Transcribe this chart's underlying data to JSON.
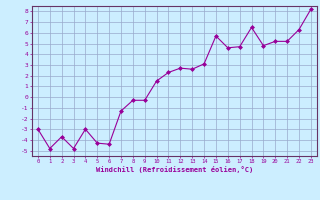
{
  "x": [
    0,
    1,
    2,
    3,
    4,
    5,
    6,
    7,
    8,
    9,
    10,
    11,
    12,
    13,
    14,
    15,
    16,
    17,
    18,
    19,
    20,
    21,
    22,
    23
  ],
  "y": [
    -3,
    -4.8,
    -3.7,
    -4.8,
    -3,
    -4.3,
    -4.4,
    -1.3,
    -0.3,
    -0.3,
    1.5,
    2.3,
    2.7,
    2.6,
    3.1,
    5.7,
    4.6,
    4.7,
    6.5,
    4.8,
    5.2,
    5.2,
    6.3,
    8.2
  ],
  "line_color": "#990099",
  "marker_color": "#990099",
  "bg_color": "#cceeff",
  "grid_color": "#99aacc",
  "xlabel": "Windchill (Refroidissement éolien,°C)",
  "xlabel_color": "#990099",
  "tick_color": "#990099",
  "axis_color": "#663366",
  "xlim": [
    -0.5,
    23.5
  ],
  "ylim": [
    -5.5,
    8.5
  ],
  "yticks": [
    -5,
    -4,
    -3,
    -2,
    -1,
    0,
    1,
    2,
    3,
    4,
    5,
    6,
    7,
    8
  ],
  "xticks": [
    0,
    1,
    2,
    3,
    4,
    5,
    6,
    7,
    8,
    9,
    10,
    11,
    12,
    13,
    14,
    15,
    16,
    17,
    18,
    19,
    20,
    21,
    22,
    23
  ]
}
